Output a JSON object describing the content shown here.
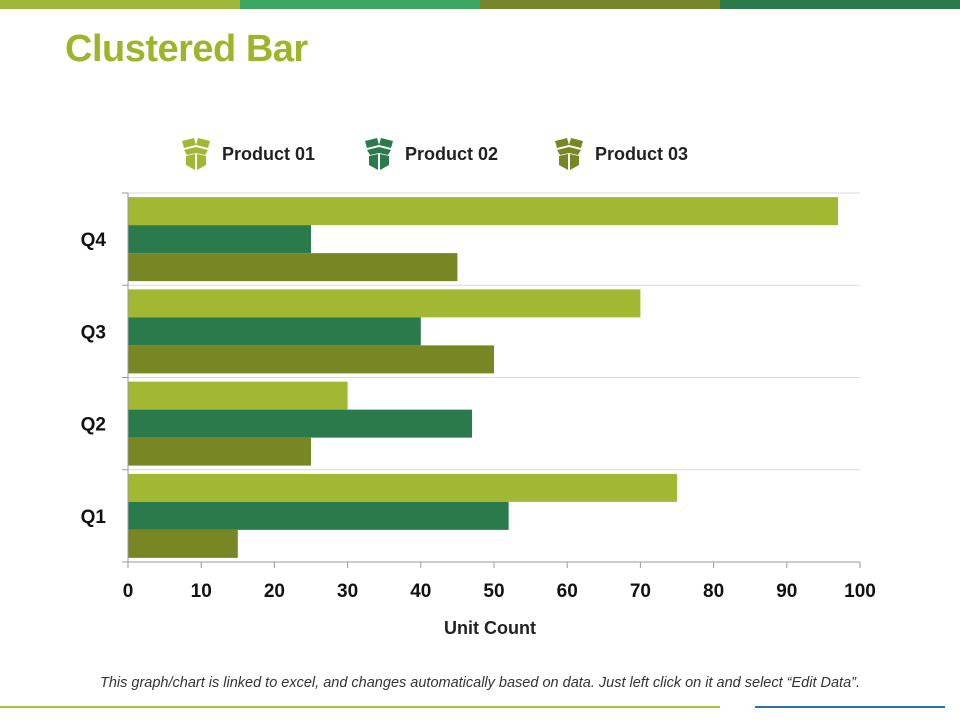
{
  "slide": {
    "title": "Clustered Bar",
    "footnote": "This graph/chart is linked to excel, and changes automatically based on data. Just left click on it and select “Edit Data”.",
    "stripe_colors": [
      "#9fb83a",
      "#3aa860",
      "#76862a",
      "#2b7a4b"
    ]
  },
  "legend": {
    "items": [
      {
        "label": "Product 01",
        "icon": "box-icon",
        "color": "#a2b832"
      },
      {
        "label": "Product 02",
        "icon": "box-icon",
        "color": "#2a7a4c"
      },
      {
        "label": "Product 03",
        "icon": "box-icon",
        "color": "#788724"
      }
    ]
  },
  "chart_data": {
    "type": "bar",
    "orientation": "horizontal",
    "title": "",
    "categories": [
      "Q1",
      "Q2",
      "Q3",
      "Q4"
    ],
    "series": [
      {
        "name": "Product 01",
        "color": "#a2b832",
        "values": [
          75,
          30,
          70,
          97
        ]
      },
      {
        "name": "Product 02",
        "color": "#2a7a4c",
        "values": [
          52,
          47,
          40,
          25
        ]
      },
      {
        "name": "Product 03",
        "color": "#788724",
        "values": [
          15,
          25,
          50,
          45
        ]
      }
    ],
    "xlabel": "Unit Count",
    "ylabel": "",
    "xlim": [
      0,
      100
    ],
    "xticks": [
      0,
      10,
      20,
      30,
      40,
      50,
      60,
      70,
      80,
      90,
      100
    ],
    "grid": true,
    "legend_position": "top"
  }
}
